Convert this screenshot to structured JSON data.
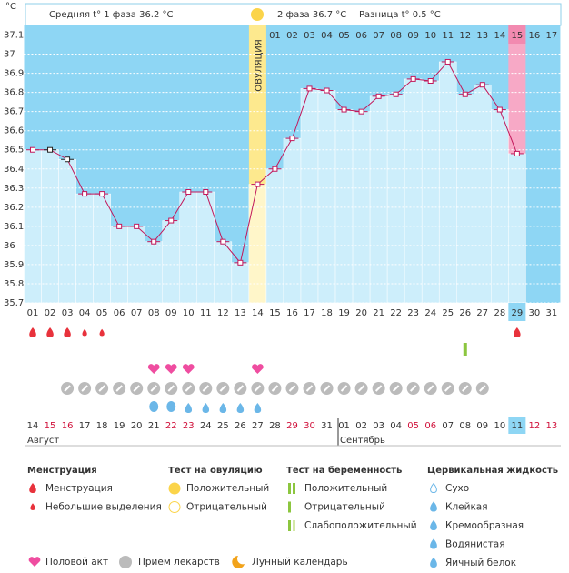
{
  "header": {
    "phase1": "Средняя t° 1 фаза 36.2 °C",
    "phase2": "2 фаза 36.7 °C",
    "diff": "Разница t° 0.5 °C"
  },
  "chart_data": {
    "type": "line",
    "y_unit": "°C",
    "ovulation_label": "ОВУЛЯЦИЯ",
    "categories": [
      "01",
      "02",
      "03",
      "04",
      "05",
      "06",
      "07",
      "08",
      "09",
      "10",
      "11",
      "12",
      "13",
      "14",
      "15",
      "16",
      "17",
      "18",
      "19",
      "20",
      "21",
      "22",
      "23",
      "24",
      "25",
      "26",
      "27",
      "28",
      "29",
      "30",
      "31"
    ],
    "phase2_days": [
      "01",
      "02",
      "03",
      "04",
      "05",
      "06",
      "07",
      "08",
      "09",
      "10",
      "11",
      "12",
      "13",
      "14",
      "15",
      "16",
      "17"
    ],
    "values": [
      36.5,
      36.5,
      36.45,
      36.27,
      36.27,
      36.1,
      36.1,
      36.02,
      36.13,
      36.28,
      36.28,
      36.02,
      35.91,
      36.32,
      36.4,
      36.56,
      36.82,
      36.81,
      36.71,
      36.7,
      36.78,
      36.79,
      36.87,
      36.86,
      36.96,
      36.79,
      36.84,
      36.71,
      36.48,
      null,
      null
    ],
    "color": "#c2185b",
    "ylim": [
      35.7,
      37.15
    ],
    "yticks": [
      35.7,
      35.8,
      35.9,
      36,
      36.1,
      36.2,
      36.3,
      36.4,
      36.5,
      36.6,
      36.7,
      36.8,
      36.9,
      37,
      37.1
    ],
    "grid": true
  },
  "dates": [
    "14",
    "15",
    "16",
    "17",
    "18",
    "19",
    "20",
    "21",
    "22",
    "23",
    "24",
    "25",
    "26",
    "27",
    "28",
    "29",
    "30",
    "31",
    "01",
    "02",
    "03",
    "04",
    "05",
    "06",
    "07",
    "08",
    "09",
    "10",
    "11",
    "12",
    "13"
  ],
  "months": [
    "Август",
    "Сентябрь"
  ],
  "legend": {
    "menstruation": {
      "title": "Менструация",
      "items": [
        "Менструация",
        "Небольшие выделения"
      ]
    },
    "ovulation_test": {
      "title": "Тест на овуляцию",
      "items": [
        "Положительный",
        "Отрицательный"
      ]
    },
    "pregnancy_test": {
      "title": "Тест на беременность",
      "items": [
        "Положительный",
        "Отрицательный",
        "Слабоположительный"
      ]
    },
    "cervical": {
      "title": "Цервикальная жидкость",
      "items": [
        "Сухо",
        "Клейкая",
        "Кремообразная",
        "Водянистая",
        "Яичный белок"
      ]
    },
    "other": [
      "Половой акт",
      "Прием лекарств",
      "Лунный календарь"
    ]
  }
}
